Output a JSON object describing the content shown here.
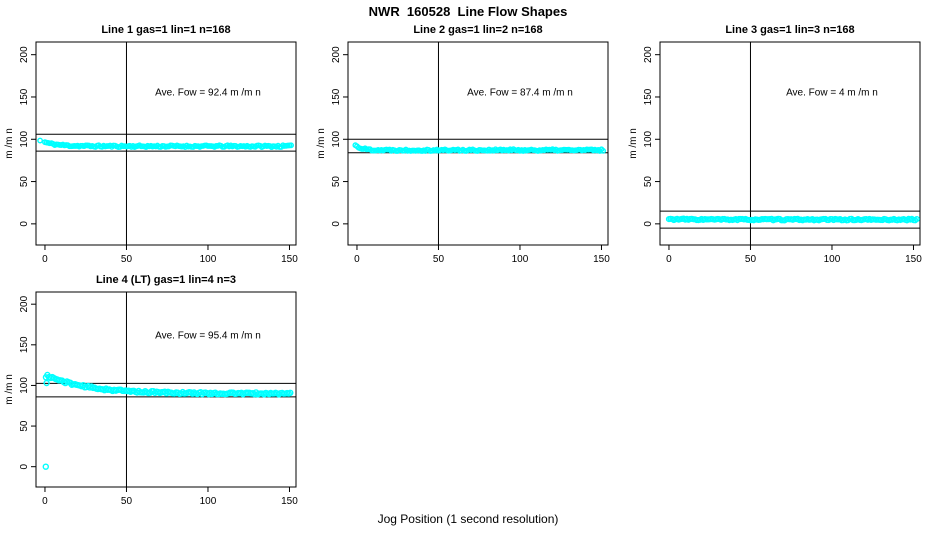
{
  "figure": {
    "title": "NWR  160528  Line Flow Shapes",
    "x_axis_label": "Jog Position (1 second resolution)"
  },
  "colors": {
    "point": "#00ffff",
    "axis": "#000000",
    "background": "#ffffff",
    "text": "#000000"
  },
  "chart_data": [
    {
      "type": "scatter",
      "title": "Line 1 gas=1 lin=1 n=168",
      "line": 1,
      "gas": 1,
      "lin": 1,
      "n": 168,
      "annotation": "Ave. Fow =  92.4  m /m n",
      "ave_flow": 92.4,
      "ylabel": "m /m n",
      "xlim": [
        -5.5,
        154
      ],
      "ylim": [
        -25,
        215
      ],
      "xticks": [
        0,
        50,
        100,
        150
      ],
      "yticks": [
        0,
        50,
        100,
        150,
        200
      ],
      "vline_x": 50,
      "hlines": [
        106,
        86
      ],
      "annotation_pos": [
        100,
        152
      ],
      "band": {
        "x_start": 0,
        "x_end": 151,
        "step": 1,
        "y_start": 96.5,
        "y_end": 91.8,
        "decay": 0.12,
        "jitter": 1.1,
        "radius": 2.2,
        "seed": 11
      },
      "extra_points": [
        [
          -3,
          98.5
        ]
      ]
    },
    {
      "type": "scatter",
      "title": "Line 2 gas=1 lin=2 n=168",
      "line": 2,
      "gas": 1,
      "lin": 2,
      "n": 168,
      "annotation": "Ave. Fow =  87.4  m /m n",
      "ave_flow": 87.4,
      "ylabel": "m /m n",
      "xlim": [
        -5.5,
        154
      ],
      "ylim": [
        -25,
        215
      ],
      "xticks": [
        0,
        50,
        100,
        150
      ],
      "yticks": [
        0,
        50,
        100,
        150,
        200
      ],
      "vline_x": 50,
      "hlines": [
        100,
        84
      ],
      "annotation_pos": [
        100,
        152
      ],
      "band": {
        "x_start": 0,
        "x_end": 151,
        "step": 1,
        "y_start": 91.5,
        "y_end": 87.2,
        "decay": 0.25,
        "jitter": 1.1,
        "radius": 2.2,
        "seed": 22
      },
      "extra_points": [
        [
          -1,
          93
        ]
      ]
    },
    {
      "type": "scatter",
      "title": "Line 3 gas=1 lin=3 n=168",
      "line": 3,
      "gas": 1,
      "lin": 3,
      "n": 168,
      "annotation": "Ave. Fow =  4  m /m n",
      "ave_flow": 4,
      "ylabel": "m /m n",
      "xlim": [
        -5.5,
        154
      ],
      "ylim": [
        -25,
        215
      ],
      "xticks": [
        0,
        50,
        100,
        150
      ],
      "yticks": [
        0,
        50,
        100,
        150,
        200
      ],
      "vline_x": 50,
      "hlines": [
        15,
        -5
      ],
      "annotation_pos": [
        100,
        152
      ],
      "band": {
        "x_start": 0,
        "x_end": 152,
        "step": 1,
        "y_start": 5.5,
        "y_end": 5,
        "decay": 0.05,
        "jitter": 0.9,
        "radius": 2.4,
        "seed": 33
      },
      "extra_points": []
    },
    {
      "type": "scatter",
      "title": "Line 4 (LT) gas=1 lin=4 n=3",
      "line": 4,
      "lt": true,
      "gas": 1,
      "lin": 4,
      "n": 3,
      "annotation": "Ave. Fow =  95.4  m /m n",
      "ave_flow": 95.4,
      "ylabel": "m /m n",
      "xlim": [
        -5.5,
        154
      ],
      "ylim": [
        -25,
        215
      ],
      "xticks": [
        0,
        50,
        100,
        150
      ],
      "yticks": [
        0,
        50,
        100,
        150,
        200
      ],
      "vline_x": 50,
      "hlines": [
        102.5,
        86
      ],
      "annotation_pos": [
        100,
        158
      ],
      "band": {
        "x_start": 1.5,
        "x_end": 151,
        "step": 1,
        "y_start": 112,
        "y_end": 90,
        "decay": 0.04,
        "jitter": 1.3,
        "radius": 2.5,
        "seed": 44
      },
      "extra_points": [
        [
          0.5,
          0
        ],
        [
          0.6,
          110
        ],
        [
          1,
          103
        ]
      ]
    }
  ]
}
